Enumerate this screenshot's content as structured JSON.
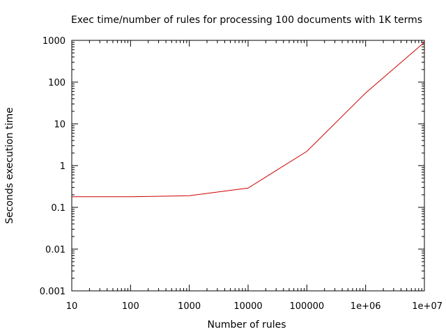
{
  "chart_data": {
    "type": "line",
    "title": "Exec time/number of rules for processing 100 documents with 1K terms",
    "xlabel": "Number of rules",
    "ylabel": "Seconds execution time",
    "x_scale": "log",
    "y_scale": "log",
    "xlim": [
      10,
      10000000
    ],
    "ylim": [
      0.001,
      1000
    ],
    "x_ticks": [
      {
        "value": 10,
        "label": "10"
      },
      {
        "value": 100,
        "label": "100"
      },
      {
        "value": 1000,
        "label": "1000"
      },
      {
        "value": 10000,
        "label": "10000"
      },
      {
        "value": 100000,
        "label": "100000"
      },
      {
        "value": 1000000,
        "label": "1e+06"
      },
      {
        "value": 10000000,
        "label": "1e+07"
      }
    ],
    "y_ticks": [
      {
        "value": 0.001,
        "label": "0.001"
      },
      {
        "value": 0.01,
        "label": "0.01"
      },
      {
        "value": 0.1,
        "label": "0.1"
      },
      {
        "value": 1,
        "label": "1"
      },
      {
        "value": 10,
        "label": "10"
      },
      {
        "value": 100,
        "label": "100"
      },
      {
        "value": 1000,
        "label": "1000"
      }
    ],
    "grid": false,
    "legend": "none",
    "series": [
      {
        "color": "#cc0000",
        "points": [
          {
            "x": 10,
            "y": 0.18
          },
          {
            "x": 100,
            "y": 0.18
          },
          {
            "x": 1000,
            "y": 0.19
          },
          {
            "x": 10000,
            "y": 0.29
          },
          {
            "x": 100000,
            "y": 2.2
          },
          {
            "x": 1000000,
            "y": 55
          },
          {
            "x": 10000000,
            "y": 900
          }
        ]
      }
    ]
  }
}
